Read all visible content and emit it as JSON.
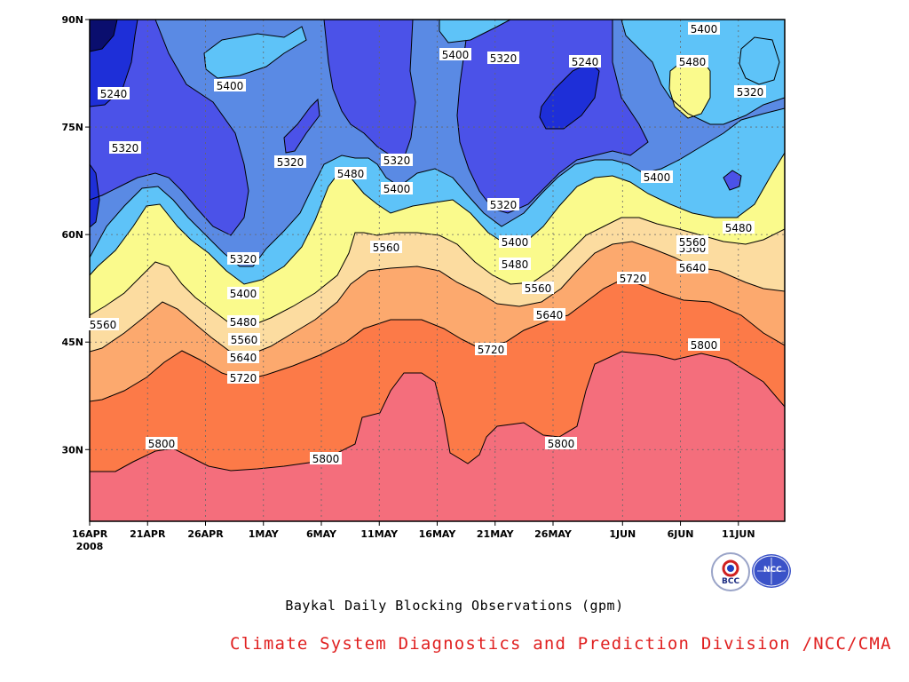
{
  "figure": {
    "title": "Baykal Daily Blocking Observations (gpm)",
    "credit": "Climate System Diagnostics and Prediction Division /NCC/CMA",
    "logos": [
      {
        "name": "bcc-logo",
        "text": "BCC"
      },
      {
        "name": "ncc-logo",
        "text": "NCC"
      }
    ]
  },
  "chart_data": {
    "type": "heatmap",
    "title": "Baykal Daily Blocking Observations (gpm)",
    "xlabel": "",
    "ylabel": "",
    "x_ticks": [
      "16APR",
      "21APR",
      "26APR",
      "1MAY",
      "6MAY",
      "11MAY",
      "16MAY",
      "21MAY",
      "26MAY",
      "1JUN",
      "6JUN",
      "11JUN"
    ],
    "x_year_label": "2008",
    "y_ticks": [
      "30N",
      "45N",
      "60N",
      "75N",
      "90N"
    ],
    "x_range": [
      "2008-04-16",
      "2008-06-14"
    ],
    "y_range": [
      20,
      90
    ],
    "units": "gpm",
    "grid": true,
    "contour_levels": [
      5240,
      5320,
      5400,
      5480,
      5560,
      5640,
      5720,
      5800
    ],
    "fill_colors": [
      "#0a0e6e",
      "#1e2fd8",
      "#4b52e8",
      "#5a8ae4",
      "#5ec3f8",
      "#fafa8c",
      "#fcdca0",
      "#fca96e",
      "#fc7a48",
      "#f46e7c"
    ],
    "contour_labels": [
      {
        "value": "5240"
      },
      {
        "value": "5320"
      },
      {
        "value": "5320"
      },
      {
        "value": "5320"
      },
      {
        "value": "5400"
      },
      {
        "value": "5400"
      },
      {
        "value": "5400"
      },
      {
        "value": "5400"
      },
      {
        "value": "5480"
      },
      {
        "value": "5480"
      },
      {
        "value": "5560"
      },
      {
        "value": "5560"
      },
      {
        "value": "5320"
      },
      {
        "value": "5320"
      },
      {
        "value": "5480"
      },
      {
        "value": "5560"
      },
      {
        "value": "5640"
      },
      {
        "value": "5720"
      },
      {
        "value": "5800"
      },
      {
        "value": "5800"
      },
      {
        "value": "5560"
      },
      {
        "value": "5640"
      },
      {
        "value": "5720"
      },
      {
        "value": "5320"
      },
      {
        "value": "5400"
      },
      {
        "value": "5480"
      },
      {
        "value": "5560"
      },
      {
        "value": "5640"
      },
      {
        "value": "5720"
      },
      {
        "value": "5800"
      },
      {
        "value": "5400"
      },
      {
        "value": "5320"
      },
      {
        "value": "5240"
      },
      {
        "value": "5400"
      },
      {
        "value": "5480"
      },
      {
        "value": "5320"
      },
      {
        "value": "5400"
      },
      {
        "value": "5480"
      },
      {
        "value": "5560"
      },
      {
        "value": "5640"
      },
      {
        "value": "5720"
      },
      {
        "value": "5800"
      },
      {
        "value": "5240"
      }
    ]
  }
}
